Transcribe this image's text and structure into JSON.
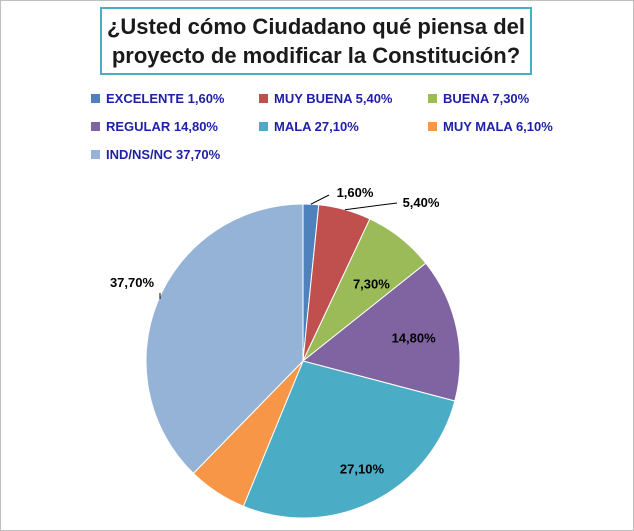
{
  "chart_data": {
    "type": "pie",
    "title": "¿Usted cómo Ciudadano qué piensa del proyecto de modificar la Constitución?",
    "legend_position": "top",
    "slices": [
      {
        "name": "EXCELENTE",
        "legend": "EXCELENTE 1,60%",
        "value": 1.6,
        "label": "1,60%",
        "color": "#4f81bd"
      },
      {
        "name": "MUY BUENA",
        "legend": "MUY BUENA 5,40%",
        "value": 5.4,
        "label": "5,40%",
        "color": "#c0504d"
      },
      {
        "name": "BUENA",
        "legend": "BUENA 7,30%",
        "value": 7.3,
        "label": "7,30%",
        "color": "#9bbb59"
      },
      {
        "name": "REGULAR",
        "legend": "REGULAR 14,80%",
        "value": 14.8,
        "label": "14,80%",
        "color": "#8064a2"
      },
      {
        "name": "MALA",
        "legend": "MALA 27,10%",
        "value": 27.1,
        "label": "27,10%",
        "color": "#4bacc6"
      },
      {
        "name": "MUY MALA",
        "legend": "MUY MALA 6,10%",
        "value": 6.1,
        "label": "",
        "color": "#f79646"
      },
      {
        "name": "IND/NS/NC",
        "legend": "IND/NS/NC 37,70%",
        "value": 37.7,
        "label": "37,70%",
        "color": "#95b3d7"
      }
    ]
  }
}
